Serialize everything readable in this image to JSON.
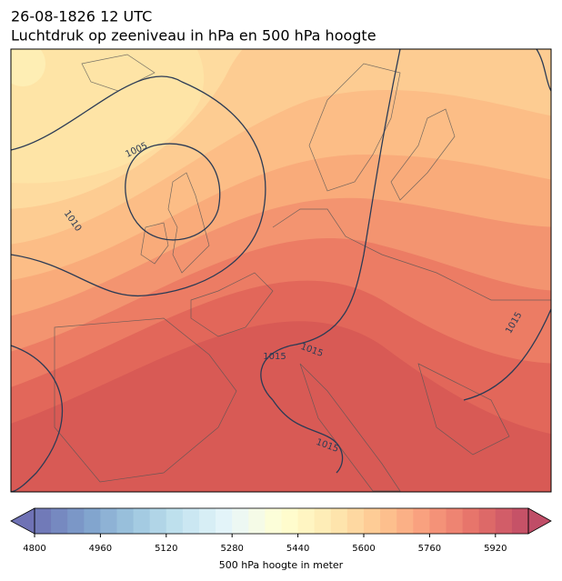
{
  "header": {
    "title": "26-08-1826 12 UTC",
    "subtitle": "Luchtdruk op zeeniveau in hPa en 500 hPa hoogte"
  },
  "map": {
    "contour_labels": [
      "1005",
      "1010",
      "1015",
      "1015",
      "1015",
      "1015"
    ]
  },
  "colorbar": {
    "label": "500 hPa hoogte in meter",
    "range": [
      4800,
      6000
    ],
    "step": 40,
    "ticks": [
      4800,
      4960,
      5120,
      5280,
      5440,
      5600,
      5760,
      5920
    ]
  }
}
